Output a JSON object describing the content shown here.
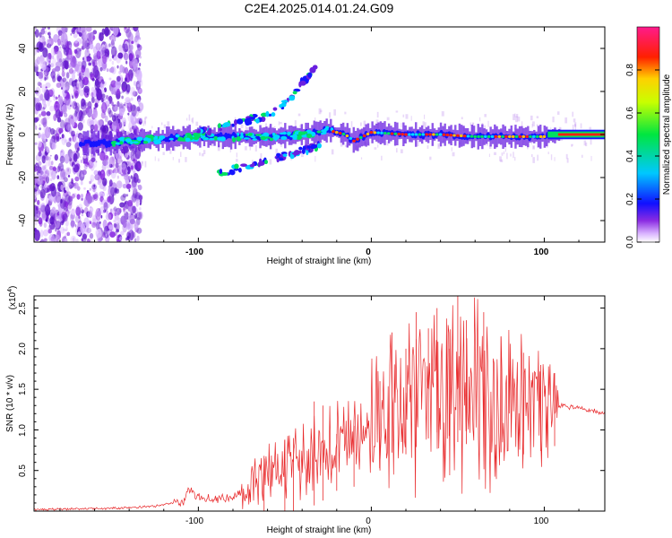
{
  "title": "C2E4.2025.014.01.24.G09",
  "chart_data": [
    {
      "type": "heatmap",
      "xlabel": "Height of straight line (km)",
      "ylabel": "Frequency (Hz)",
      "xlim": [
        -195,
        135
      ],
      "ylim": [
        -50,
        50
      ],
      "x_ticks": [
        "-100",
        "0",
        "100"
      ],
      "y_ticks": [
        "-40",
        "-20",
        "0",
        "20",
        "40"
      ],
      "colorbar": {
        "label": "Normalized spectral amplitude",
        "range": [
          0,
          1
        ],
        "ticks": [
          "0.0",
          "0.2",
          "0.4",
          "0.6",
          "0.8"
        ]
      },
      "ridge": [
        {
          "x": -165,
          "y": -4
        },
        {
          "x": -150,
          "y": -4
        },
        {
          "x": -140,
          "y": -3
        },
        {
          "x": -120,
          "y": -2
        },
        {
          "x": -100,
          "y": -1
        },
        {
          "x": -80,
          "y": -1
        },
        {
          "x": -60,
          "y": -1
        },
        {
          "x": -40,
          "y": 0
        },
        {
          "x": -25,
          "y": 2
        },
        {
          "x": -15,
          "y": 0
        },
        {
          "x": -10,
          "y": -3
        },
        {
          "x": 0,
          "y": 1
        },
        {
          "x": 20,
          "y": 0
        },
        {
          "x": 40,
          "y": 0
        },
        {
          "x": 60,
          "y": -1
        },
        {
          "x": 80,
          "y": -1
        },
        {
          "x": 100,
          "y": -1
        },
        {
          "x": 110,
          "y": 0
        },
        {
          "x": 135,
          "y": 0
        }
      ],
      "upper_branch": [
        {
          "x": -100,
          "y": 1
        },
        {
          "x": -80,
          "y": 5
        },
        {
          "x": -60,
          "y": 9
        },
        {
          "x": -48,
          "y": 15
        },
        {
          "x": -40,
          "y": 24
        },
        {
          "x": -32,
          "y": 33
        }
      ],
      "lower_branch": [
        {
          "x": -88,
          "y": -18
        },
        {
          "x": -70,
          "y": -14
        },
        {
          "x": -50,
          "y": -10
        },
        {
          "x": -30,
          "y": -5
        }
      ]
    },
    {
      "type": "line",
      "xlabel": "Height of straight line (km)",
      "ylabel": "SNR (10 * v/v)",
      "y_multiplier": "(x10",
      "y_multiplier_exp": "4",
      "y_multiplier_close": ")",
      "xlim": [
        -195,
        135
      ],
      "ylim": [
        0,
        2.65
      ],
      "x_ticks": [
        "-100",
        "0",
        "100"
      ],
      "y_ticks": [
        "0.5",
        "1.0",
        "1.5",
        "2.0",
        "2.5"
      ],
      "series": [
        {
          "color": "#e8282a",
          "x": [
            -195,
            -160,
            -140,
            -125,
            -115,
            -108,
            -105,
            -102,
            -95,
            -85,
            -78,
            -70,
            -62,
            -58,
            -50,
            -40,
            -30,
            -20,
            -10,
            0,
            10,
            15,
            20,
            30,
            40,
            50,
            60,
            70,
            80,
            90,
            100,
            105,
            108,
            115,
            125,
            135
          ],
          "values": [
            0.02,
            0.03,
            0.04,
            0.06,
            0.1,
            0.12,
            0.28,
            0.18,
            0.15,
            0.16,
            0.18,
            0.3,
            0.45,
            0.5,
            0.55,
            0.6,
            0.7,
            0.85,
            0.9,
            1.0,
            1.2,
            1.5,
            1.3,
            1.45,
            1.6,
            1.45,
            1.4,
            1.35,
            1.3,
            1.3,
            1.35,
            1.45,
            1.3,
            1.28,
            1.25,
            1.2
          ],
          "spikes": [
            {
              "x": -62,
              "y": 0.68
            },
            {
              "x": -50,
              "y": 0.88
            },
            {
              "x": -45,
              "y": 0.9
            },
            {
              "x": -33,
              "y": 1.35
            },
            {
              "x": -28,
              "y": 1.3
            },
            {
              "x": -20,
              "y": 0.95
            },
            {
              "x": -10,
              "y": 1.05
            },
            {
              "x": 5,
              "y": 1.6
            },
            {
              "x": 12,
              "y": 2.2
            },
            {
              "x": 20,
              "y": 2.0
            },
            {
              "x": 26,
              "y": 2.45
            },
            {
              "x": 33,
              "y": 2.25
            },
            {
              "x": 38,
              "y": 2.5
            },
            {
              "x": 45,
              "y": 2.0
            },
            {
              "x": 50,
              "y": 2.65
            },
            {
              "x": 55,
              "y": 2.35
            },
            {
              "x": 65,
              "y": 2.45
            },
            {
              "x": 75,
              "y": 2.15
            },
            {
              "x": 88,
              "y": 1.95
            },
            {
              "x": 98,
              "y": 1.8
            },
            {
              "x": 106,
              "y": 1.7
            }
          ]
        }
      ]
    }
  ]
}
